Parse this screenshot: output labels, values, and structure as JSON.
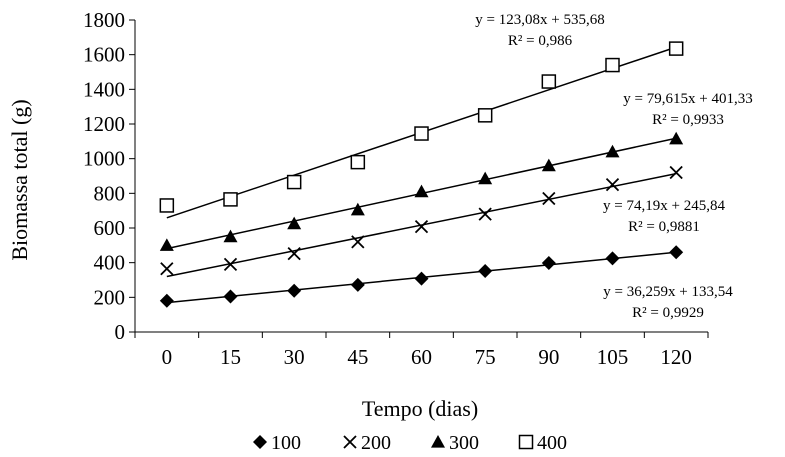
{
  "chart_data": {
    "type": "scatter",
    "title": "",
    "xlabel": "Tempo (dias)",
    "ylabel": "Biomassa total (g)",
    "categories": [
      "0",
      "15",
      "30",
      "45",
      "60",
      "75",
      "90",
      "105",
      "120"
    ],
    "ylim": [
      0,
      1800
    ],
    "yticks": [
      0,
      200,
      400,
      600,
      800,
      1000,
      1200,
      1400,
      1600,
      1800
    ],
    "grid": false,
    "legend_position": "bottom",
    "series": [
      {
        "name": "100",
        "marker": "diamond",
        "values": [
          180,
          205,
          238,
          272,
          308,
          352,
          398,
          425,
          460
        ],
        "trend": {
          "slope": 36.259,
          "intercept": 133.54
        },
        "equation": "y = 36,259x + 133,54",
        "r2": "R² = 0,9929"
      },
      {
        "name": "200",
        "marker": "x",
        "values": [
          365,
          390,
          452,
          520,
          608,
          680,
          770,
          850,
          920
        ],
        "trend": {
          "slope": 74.19,
          "intercept": 245.84
        },
        "equation": "y = 74,19x + 245,84",
        "r2": "R² = 0,9881"
      },
      {
        "name": "300",
        "marker": "triangle",
        "values": [
          500,
          550,
          625,
          705,
          810,
          885,
          960,
          1040,
          1115
        ],
        "trend": {
          "slope": 79.615,
          "intercept": 401.33
        },
        "equation": "y = 79,615x + 401,33",
        "r2": "R² = 0,9933"
      },
      {
        "name": "400",
        "marker": "square",
        "values": [
          730,
          765,
          865,
          980,
          1145,
          1250,
          1445,
          1540,
          1635
        ],
        "trend": {
          "slope": 123.08,
          "intercept": 535.68
        },
        "equation": "y = 123,08x + 535,68",
        "r2": "R² = 0,986"
      }
    ]
  }
}
